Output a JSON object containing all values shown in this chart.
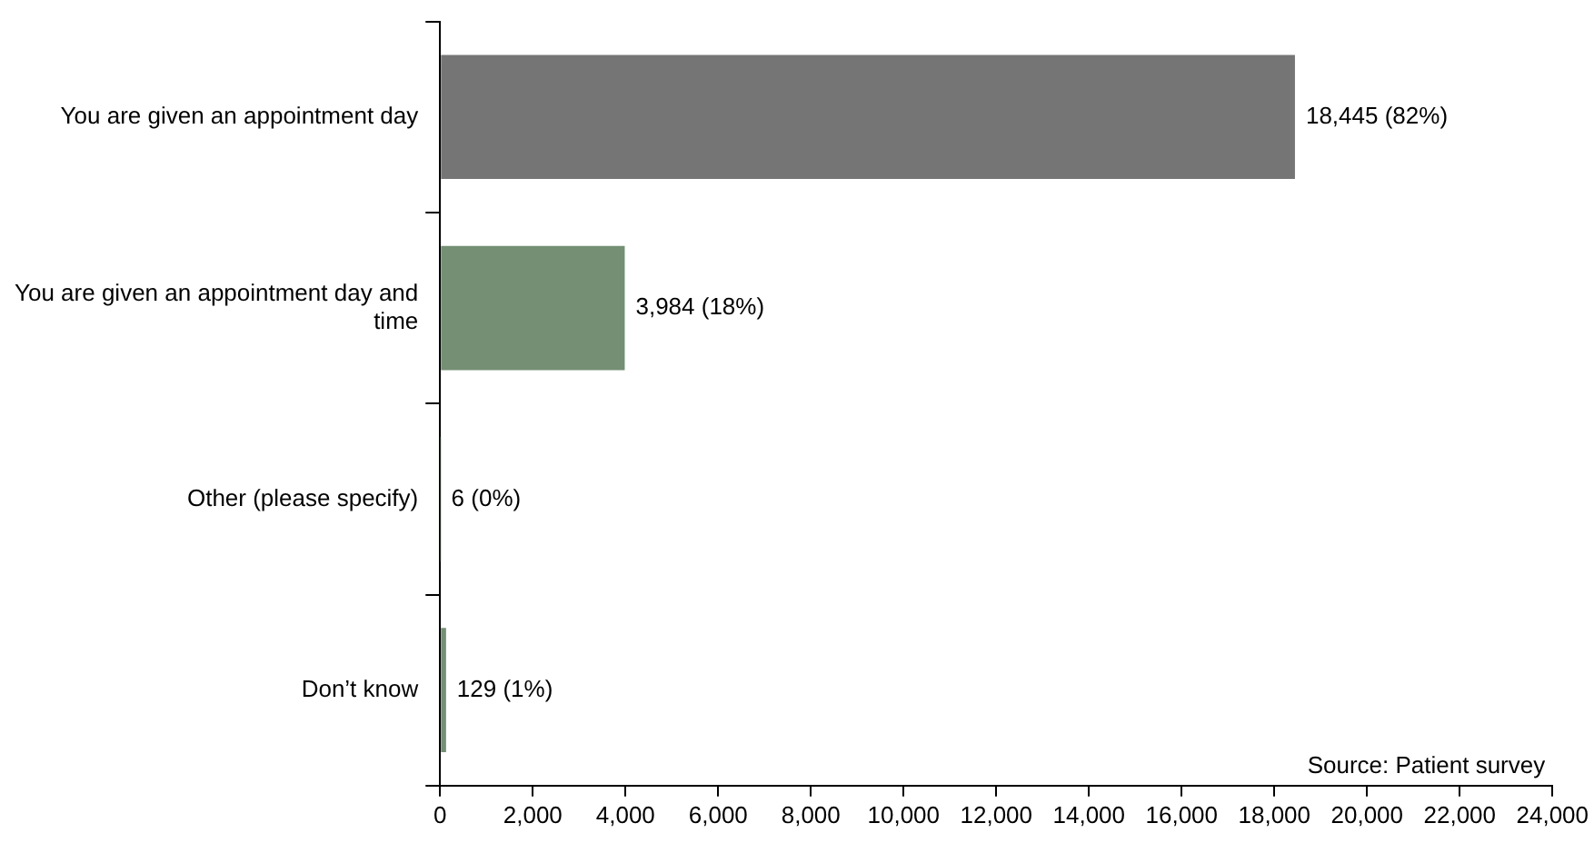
{
  "chart_data": {
    "type": "bar",
    "orientation": "horizontal",
    "categories": [
      "You are given an appointment day",
      "You are given an appointment day and time",
      "Other (please specify)",
      "Don’t know"
    ],
    "values": [
      18445,
      3984,
      6,
      129
    ],
    "colors": [
      "#757575",
      "#748f74",
      "#748f74",
      "#748f74"
    ],
    "value_labels": [
      "18,445 (82%)",
      "3,984 (18%)",
      "6 (0%)",
      "129 (1%)"
    ],
    "xlim": [
      0,
      24000
    ],
    "xticks": [
      0,
      {
        "value": 2000,
        "label": "2,000"
      },
      {
        "value": 4000,
        "label": "4,000"
      },
      {
        "value": 6000,
        "label": "6,000"
      },
      {
        "value": 8000,
        "label": "8,000"
      },
      {
        "value": 10000,
        "label": "10,000"
      },
      {
        "value": 12000,
        "label": "12,000"
      },
      {
        "value": 14000,
        "label": "14,000"
      },
      {
        "value": 16000,
        "label": "16,000"
      },
      {
        "value": 18000,
        "label": "18,000"
      },
      {
        "value": 20000,
        "label": "20,000"
      },
      {
        "value": 22000,
        "label": "22,000"
      },
      {
        "value": 24000,
        "label": "24,000"
      }
    ],
    "grid": false,
    "legend": false,
    "annotations": [
      "Source: Patient survey"
    ]
  }
}
